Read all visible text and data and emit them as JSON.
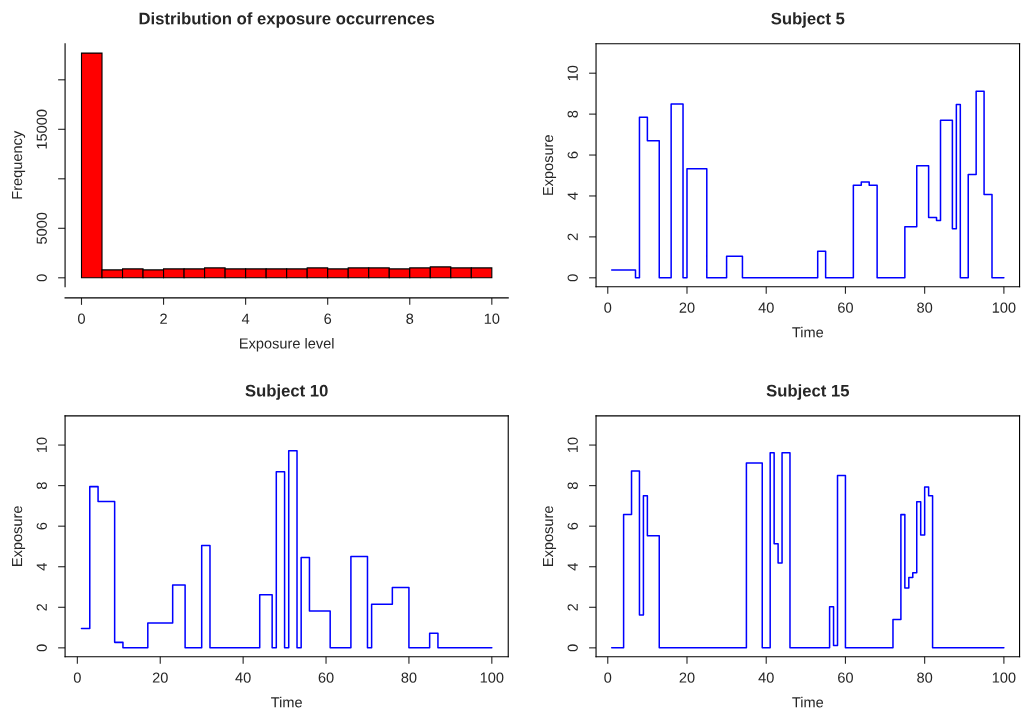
{
  "chart_data": [
    {
      "type": "histogram",
      "title": "Distribution of exposure occurrences",
      "xlabel": "Exposure level",
      "ylabel": "Frequency",
      "color": "#ff0000",
      "bins": [
        0,
        0.5,
        1,
        1.5,
        2,
        2.5,
        3,
        3.5,
        4,
        4.5,
        5,
        5.5,
        6,
        6.5,
        7,
        7.5,
        8,
        8.5,
        9,
        9.5,
        10
      ],
      "values": [
        22700,
        800,
        900,
        800,
        900,
        900,
        1000,
        900,
        900,
        900,
        900,
        1000,
        900,
        1000,
        1000,
        900,
        1000,
        1100,
        1000,
        1000
      ],
      "xlim": [
        -0.4,
        10.4
      ],
      "xticks": [
        0,
        2,
        4,
        6,
        8,
        10
      ],
      "ylim": [
        -909,
        23643
      ],
      "yticks": [
        0,
        5000,
        {
          "value": 10000,
          "label": null
        },
        15000,
        {
          "value": 20000,
          "label": null
        }
      ],
      "grid": false
    },
    {
      "type": "step",
      "title": "Subject 5",
      "xlabel": "Time",
      "ylabel": "Exposure",
      "color": "#0000ff",
      "x": [
        1,
        7,
        8,
        10,
        13,
        16,
        19,
        20,
        25,
        30,
        34,
        53,
        55,
        62,
        64,
        66,
        68,
        75,
        78,
        81,
        83,
        84,
        87,
        88,
        89,
        91,
        93,
        95,
        97,
        100
      ],
      "values": [
        0.38,
        0,
        7.85,
        6.7,
        0,
        8.5,
        0,
        5.33,
        0,
        1.05,
        0,
        1.3,
        0,
        4.52,
        4.68,
        4.52,
        0,
        2.5,
        5.48,
        2.95,
        2.8,
        7.7,
        2.4,
        8.47,
        0,
        5.05,
        9.12,
        4.07,
        0,
        0
      ],
      "xlim": [
        -2.96,
        103.96
      ],
      "xticks": [
        0,
        20,
        40,
        60,
        80,
        100
      ],
      "ylim": [
        -0.44,
        11.44
      ],
      "yticks": [
        0,
        2,
        4,
        6,
        8,
        10
      ],
      "grid": false
    },
    {
      "type": "step",
      "title": "Subject 10",
      "xlabel": "Time",
      "ylabel": "Exposure",
      "color": "#0000ff",
      "x": [
        1,
        3,
        5,
        9,
        11,
        17,
        23,
        26,
        30,
        32,
        44,
        47,
        48,
        50,
        51,
        53,
        54,
        56,
        61,
        66,
        70,
        71,
        76,
        80,
        85,
        87,
        100
      ],
      "values": [
        0.95,
        7.95,
        7.22,
        0.27,
        0,
        1.23,
        3.1,
        0,
        5.05,
        0,
        2.62,
        0,
        8.68,
        0,
        9.72,
        0,
        4.45,
        1.82,
        0,
        4.5,
        0,
        2.15,
        2.98,
        0,
        0.72,
        0,
        0
      ],
      "xlim": [
        -2.96,
        103.96
      ],
      "xticks": [
        0,
        20,
        40,
        60,
        80,
        100
      ],
      "ylim": [
        -0.44,
        11.44
      ],
      "yticks": [
        0,
        2,
        4,
        6,
        8,
        10
      ],
      "grid": false
    },
    {
      "type": "step",
      "title": "Subject 15",
      "xlabel": "Time",
      "ylabel": "Exposure",
      "color": "#0000ff",
      "x": [
        1,
        4,
        6,
        8,
        9,
        10,
        13,
        35,
        39,
        41,
        42,
        43,
        44,
        46,
        56,
        57,
        58,
        60,
        72,
        74,
        75,
        76,
        77,
        78,
        79,
        80,
        81,
        82,
        100
      ],
      "values": [
        0,
        6.58,
        8.72,
        1.62,
        7.5,
        5.53,
        0,
        9.12,
        0,
        9.62,
        5.13,
        4.18,
        9.62,
        0,
        2.03,
        0.12,
        8.5,
        0,
        1.4,
        6.57,
        2.95,
        3.47,
        3.7,
        7.2,
        5.57,
        7.93,
        7.5,
        0,
        0
      ],
      "xlim": [
        -2.96,
        103.96
      ],
      "xticks": [
        0,
        20,
        40,
        60,
        80,
        100
      ],
      "ylim": [
        -0.44,
        11.44
      ],
      "yticks": [
        0,
        2,
        4,
        6,
        8,
        10
      ],
      "grid": false
    }
  ]
}
